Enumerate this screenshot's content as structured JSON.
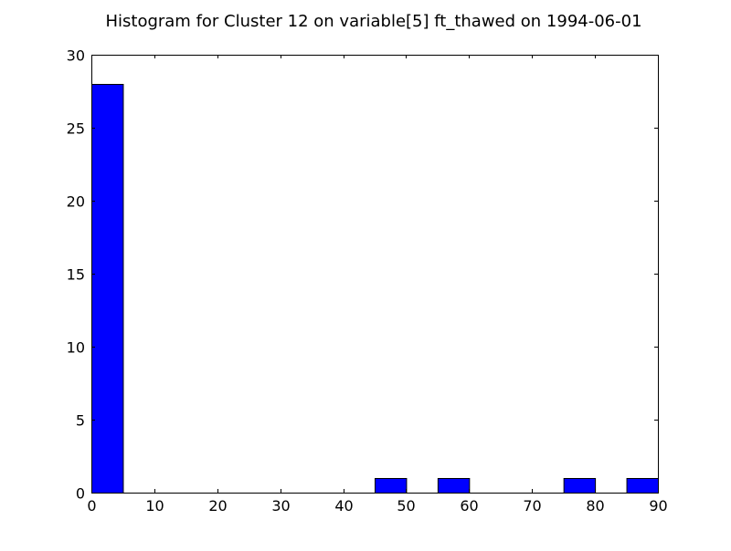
{
  "chart_data": {
    "type": "bar",
    "title": "Histogram for Cluster 12 on variable[5] ft_thawed on 1994-06-01",
    "xlabel": "",
    "ylabel": "",
    "xlim": [
      0,
      90
    ],
    "ylim": [
      0,
      30
    ],
    "x_ticks": [
      0,
      10,
      20,
      30,
      40,
      50,
      60,
      70,
      80,
      90
    ],
    "y_ticks": [
      0,
      5,
      10,
      15,
      20,
      25,
      30
    ],
    "bins": [
      {
        "start": 0,
        "end": 5,
        "count": 28
      },
      {
        "start": 45,
        "end": 50,
        "count": 1
      },
      {
        "start": 55,
        "end": 60,
        "count": 1
      },
      {
        "start": 75,
        "end": 80,
        "count": 1
      },
      {
        "start": 85,
        "end": 90,
        "count": 1
      }
    ],
    "bar_color": "#0000ff",
    "edge_color": "#000000",
    "grid": false,
    "legend": "none"
  }
}
